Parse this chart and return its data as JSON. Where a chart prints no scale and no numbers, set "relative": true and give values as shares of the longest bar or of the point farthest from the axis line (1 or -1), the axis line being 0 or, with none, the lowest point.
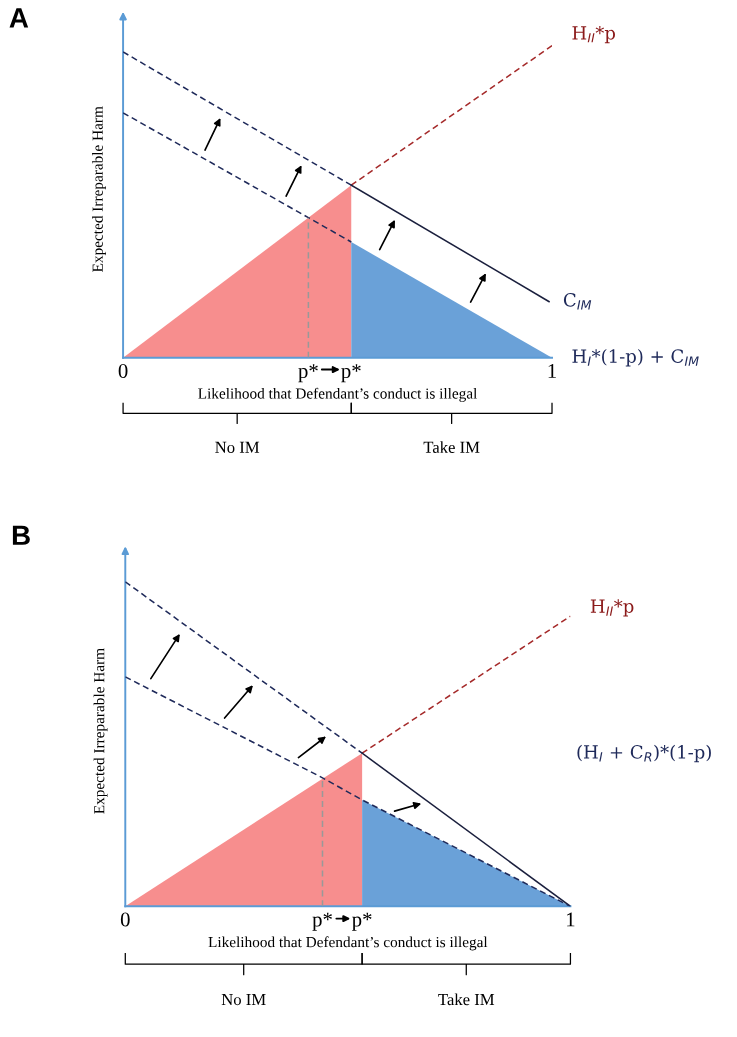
{
  "chart_data": [
    {
      "type": "line",
      "title": "A",
      "xlabel": "Likelihood that Defendant’s conduct is illegal",
      "ylabel": "Expected Irreparable Harm",
      "relative": true,
      "xlim": [
        0,
        1
      ],
      "xticks": [
        0,
        {
          "value": 0.432,
          "label": "p*"
        },
        {
          "value": 0.532,
          "label": "p*"
        },
        1
      ],
      "grid": false,
      "legend": false,
      "annotations": [
        "No IM",
        "Take IM"
      ],
      "series": [
        {
          "type": "area",
          "color": "#f78e8e",
          "x": [
            0,
            0.532
          ],
          "values": [
            0,
            0.553
          ]
        },
        {
          "type": "area",
          "color": "#6aa1d8",
          "name": "H$_{I}$*(1-p) + C$_{IM}$",
          "x": [
            0.532,
            1
          ],
          "values": [
            0.371,
            0
          ]
        },
        {
          "color": "#a52a2a",
          "line_style": "dashed",
          "name": "H$_{II}$*p",
          "x": [
            0.532,
            1
          ],
          "values": [
            0.553,
            1
          ]
        },
        {
          "color": "#1f2a5a",
          "line_style": "dashed",
          "x": [
            0,
            0.532
          ],
          "values": [
            0.98,
            0.553
          ]
        },
        {
          "color": "#1a1f3d",
          "line_style": "solid",
          "name": "C$_{IM}$",
          "x": [
            0.532,
            0.993
          ],
          "values": [
            0.553,
            0.18
          ]
        },
        {
          "color": "#1f2a5a",
          "line_style": "dashed",
          "x": [
            0,
            0.432,
            0.532
          ],
          "values": [
            0.785,
            0.449,
            0.371
          ]
        },
        {
          "color": "#999999",
          "line_style": "dashed",
          "x": [
            0.432,
            0.432
          ],
          "values": [
            0,
            0.449
          ]
        }
      ]
    },
    {
      "type": "line",
      "title": "B",
      "xlabel": "Likelihood that Defendant’s conduct is illegal",
      "ylabel": "Expected Irreparable Harm",
      "relative": true,
      "xlim": [
        0,
        1
      ],
      "xticks": [
        0,
        {
          "value": 0.443,
          "label": "p*"
        },
        {
          "value": 0.532,
          "label": "p*"
        },
        1
      ],
      "grid": false,
      "legend": false,
      "annotations": [
        "No IM",
        "Take IM"
      ],
      "series": [
        {
          "type": "area",
          "color": "#f78e8e",
          "x": [
            0,
            0.532
          ],
          "values": [
            0,
            0.472
          ]
        },
        {
          "type": "area",
          "color": "#6aa1d8",
          "x": [
            0.532,
            1
          ],
          "values": [
            0.328,
            0
          ]
        },
        {
          "color": "#a52a2a",
          "line_style": "dashed",
          "name": "H$_{II}$*p",
          "x": [
            0.532,
            1
          ],
          "values": [
            0.472,
            0.894
          ]
        },
        {
          "color": "#1f2a5a",
          "line_style": "dashed",
          "x": [
            0,
            0.532
          ],
          "values": [
            1,
            0.472
          ]
        },
        {
          "color": "#1a1f3d",
          "line_style": "solid",
          "name": "(H$_{I}$ + C$_{R}$)*(1-p)",
          "x": [
            0.532,
            1
          ],
          "values": [
            0.472,
            0
          ]
        },
        {
          "color": "#1f2a5a",
          "line_style": "dashed",
          "x": [
            0,
            0.443,
            0.532,
            1
          ],
          "values": [
            0.707,
            0.396,
            0.328,
            0
          ]
        },
        {
          "color": "#999999",
          "line_style": "dashed",
          "x": [
            0.443,
            0.443
          ],
          "values": [
            0,
            0.396
          ]
        }
      ]
    }
  ]
}
